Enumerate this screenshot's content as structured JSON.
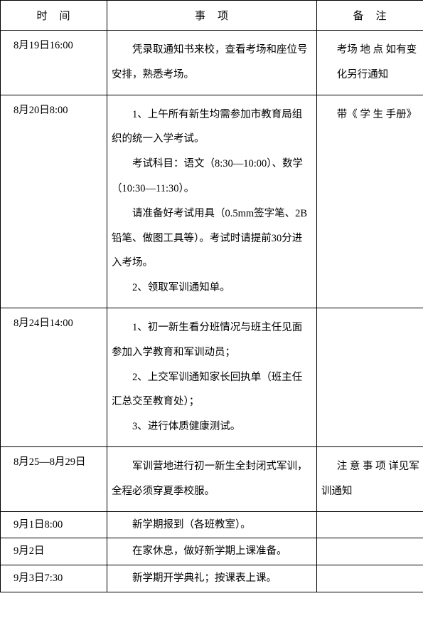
{
  "headers": {
    "time": "时　间",
    "item": "事　项",
    "note": "备　注"
  },
  "rows": [
    {
      "time": "8月19日16:00",
      "items": [
        "凭录取通知书来校，查看考场和座位号安排，熟悉考场。"
      ],
      "notes": [
        "考场 地 点 如有变",
        "化另行通知"
      ]
    },
    {
      "time": "8月20日8:00",
      "items": [
        "1、上午所有新生均需参加市教育局组织的统一入学考试。",
        "考试科目：语文（8:30—10:00）、数学（10:30—11:30）。",
        "请准备好考试用具（0.5mm签字笔、2B铅笔、做图工具等）。考试时请提前30分进入考场。",
        "2、领取军训通知单。"
      ],
      "notes": [
        "带《 学 生 手册》"
      ]
    },
    {
      "time": "8月24日14:00",
      "items": [
        "1、初一新生看分班情况与班主任见面参加入学教育和军训动员；",
        "2、上交军训通知家长回执单（班主任汇总交至教育处）；",
        "3、进行体质健康测试。"
      ],
      "notes": []
    },
    {
      "time": "8月25—8月29日",
      "items": [
        "军训营地进行初一新生全封闭式军训，全程必须穿夏季校服。"
      ],
      "notes": [
        "注 意 事 项 详见军训通知"
      ]
    },
    {
      "time": "9月1日8:00",
      "items": [
        "新学期报到（各班教室）。"
      ],
      "notes": [],
      "single": true
    },
    {
      "time": "9月2日",
      "items": [
        "在家休息，做好新学期上课准备。"
      ],
      "notes": [],
      "single": true
    },
    {
      "time": "9月3日7:30",
      "items": [
        "新学期开学典礼；按课表上课。"
      ],
      "notes": [],
      "single": true
    }
  ]
}
